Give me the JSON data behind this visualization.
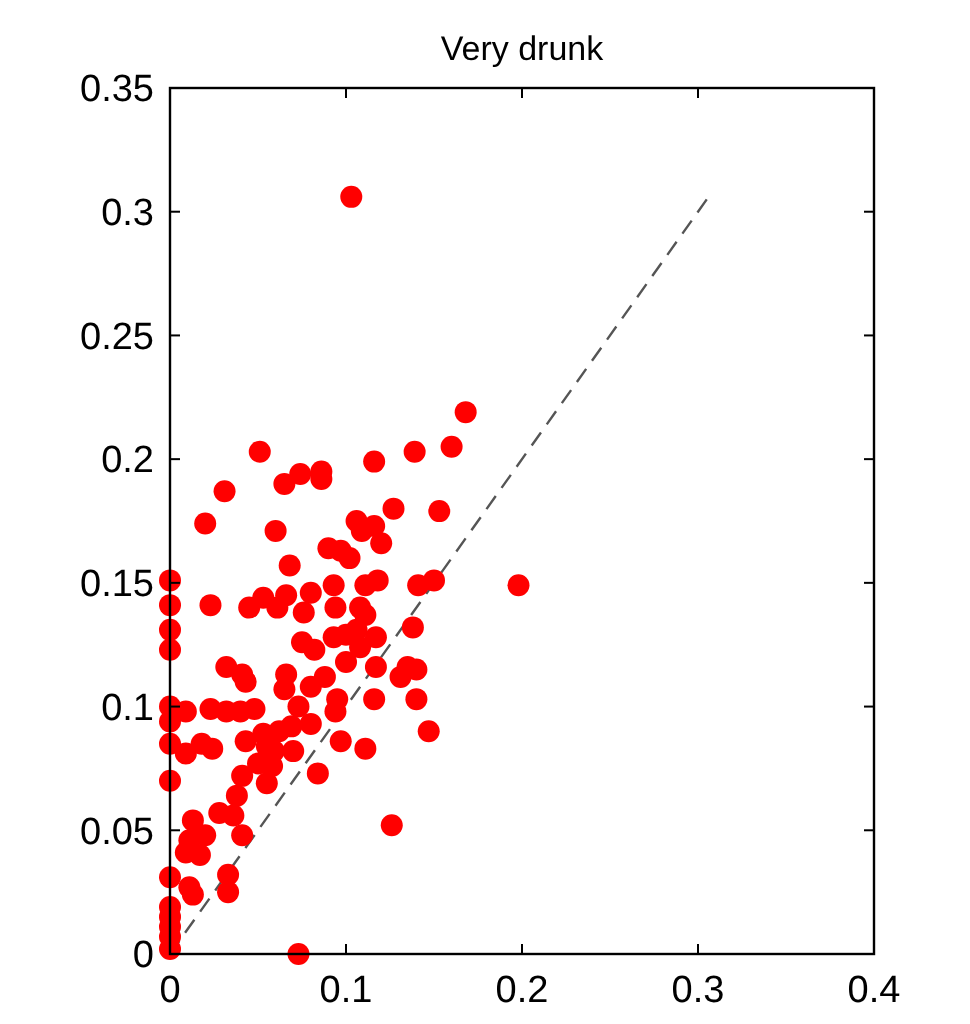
{
  "chart_data": {
    "type": "scatter",
    "title": "Very drunk",
    "xlim": [
      0,
      0.4
    ],
    "xticks": [
      0,
      0.1,
      0.2,
      0.3,
      0.4
    ],
    "ylim": [
      0,
      0.35
    ],
    "yticks": [
      0,
      0.05,
      0.1,
      0.15,
      0.2,
      0.25,
      0.3,
      0.35
    ],
    "grid": false,
    "series": [
      {
        "type": "line",
        "color": "#555555",
        "line_style": "dashed",
        "marker": "none",
        "x": [
          0,
          0.305
        ],
        "values": [
          0,
          0.305
        ]
      },
      {
        "type": "scatter",
        "color": "#ff0000",
        "marker": "circle",
        "x": [
          0.103,
          0.168,
          0.16,
          0.139,
          0.116,
          0.051,
          0.074,
          0.086,
          0.086,
          0.065,
          0.031,
          0.02,
          0.06,
          0.106,
          0.109,
          0.116,
          0.12,
          0.127,
          0.153,
          0.09,
          0.097,
          0.102,
          0.068,
          0,
          0.093,
          0.111,
          0.118,
          0.141,
          0.15,
          0.198,
          0,
          0.023,
          0.053,
          0.045,
          0.061,
          0.066,
          0.08,
          0.076,
          0.094,
          0.108,
          0.111,
          0,
          0.138,
          0.075,
          0.082,
          0.093,
          0.1,
          0.106,
          0.117,
          0.108,
          0,
          0.032,
          0.041,
          0.043,
          0.066,
          0.065,
          0.08,
          0.088,
          0.1,
          0.117,
          0.131,
          0.135,
          0.14,
          0.073,
          0.095,
          0.094,
          0.116,
          0.14,
          0,
          0.009,
          0.023,
          0.032,
          0.04,
          0.048,
          0,
          0.147,
          0.08,
          0.069,
          0.062,
          0.053,
          0.043,
          0.055,
          0,
          0.018,
          0.024,
          0.009,
          0.097,
          0.111,
          0.059,
          0.07,
          0.05,
          0.058,
          0.055,
          0.041,
          0.084,
          0,
          0.038,
          0.028,
          0.036,
          0.013,
          0.02,
          0.041,
          0.011,
          0.009,
          0.017,
          0.126,
          0,
          0.033,
          0.011,
          0.013,
          0.033,
          0,
          0,
          0,
          0,
          0,
          0.073
        ],
        "values": [
          0.306,
          0.219,
          0.205,
          0.203,
          0.199,
          0.203,
          0.194,
          0.195,
          0.192,
          0.19,
          0.187,
          0.174,
          0.171,
          0.175,
          0.171,
          0.173,
          0.166,
          0.18,
          0.179,
          0.164,
          0.163,
          0.16,
          0.157,
          0.151,
          0.149,
          0.149,
          0.151,
          0.149,
          0.151,
          0.149,
          0.141,
          0.141,
          0.144,
          0.14,
          0.14,
          0.145,
          0.146,
          0.138,
          0.14,
          0.14,
          0.137,
          0.131,
          0.132,
          0.126,
          0.123,
          0.128,
          0.129,
          0.131,
          0.128,
          0.124,
          0.123,
          0.116,
          0.113,
          0.11,
          0.113,
          0.107,
          0.108,
          0.112,
          0.118,
          0.116,
          0.112,
          0.116,
          0.115,
          0.1,
          0.103,
          0.098,
          0.103,
          0.103,
          0.1,
          0.098,
          0.099,
          0.098,
          0.098,
          0.099,
          0.094,
          0.09,
          0.093,
          0.092,
          0.09,
          0.089,
          0.086,
          0.084,
          0.085,
          0.085,
          0.083,
          0.081,
          0.086,
          0.083,
          0.082,
          0.082,
          0.077,
          0.076,
          0.069,
          0.072,
          0.073,
          0.07,
          0.064,
          0.057,
          0.056,
          0.054,
          0.048,
          0.048,
          0.046,
          0.041,
          0.04,
          0.052,
          0.031,
          0.032,
          0.027,
          0.024,
          0.025,
          0.019,
          0.015,
          0.011,
          0.007,
          0.002,
          0
        ]
      }
    ]
  }
}
